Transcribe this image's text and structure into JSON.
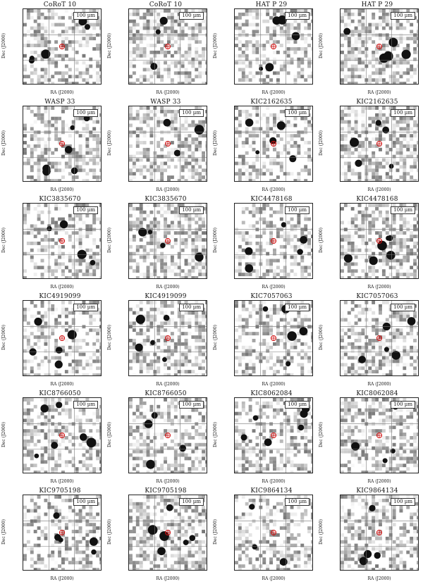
{
  "labels": {
    "scale": "100 µm",
    "ylabel": "Dec (J2000)",
    "xlabel": "RA (J2000)"
  },
  "panels": [
    {
      "title": "CoRoT 10",
      "seed": 11
    },
    {
      "title": "CoRoT 10",
      "seed": 12
    },
    {
      "title": "HAT P 29",
      "seed": 21
    },
    {
      "title": "HAT P 29",
      "seed": 22
    },
    {
      "title": "WASP 33",
      "seed": 31
    },
    {
      "title": "WASP 33",
      "seed": 32
    },
    {
      "title": "KIC2162635",
      "seed": 41
    },
    {
      "title": "KIC2162635",
      "seed": 42
    },
    {
      "title": "KIC3835670",
      "seed": 51
    },
    {
      "title": "KIC3835670",
      "seed": 52
    },
    {
      "title": "KIC4478168",
      "seed": 61
    },
    {
      "title": "KIC4478168",
      "seed": 62
    },
    {
      "title": "KIC4919099",
      "seed": 71
    },
    {
      "title": "KIC4919099",
      "seed": 72
    },
    {
      "title": "KIC7057063",
      "seed": 81
    },
    {
      "title": "KIC7057063",
      "seed": 82
    },
    {
      "title": "KIC8766050",
      "seed": 91
    },
    {
      "title": "KIC8766050",
      "seed": 92
    },
    {
      "title": "KIC8062084",
      "seed": 101
    },
    {
      "title": "KIC8062084",
      "seed": 102
    },
    {
      "title": "KIC9705198",
      "seed": 111
    },
    {
      "title": "KIC9705198",
      "seed": 112
    },
    {
      "title": "KIC9864134",
      "seed": 121
    },
    {
      "title": "KIC9864134",
      "seed": 122
    }
  ]
}
